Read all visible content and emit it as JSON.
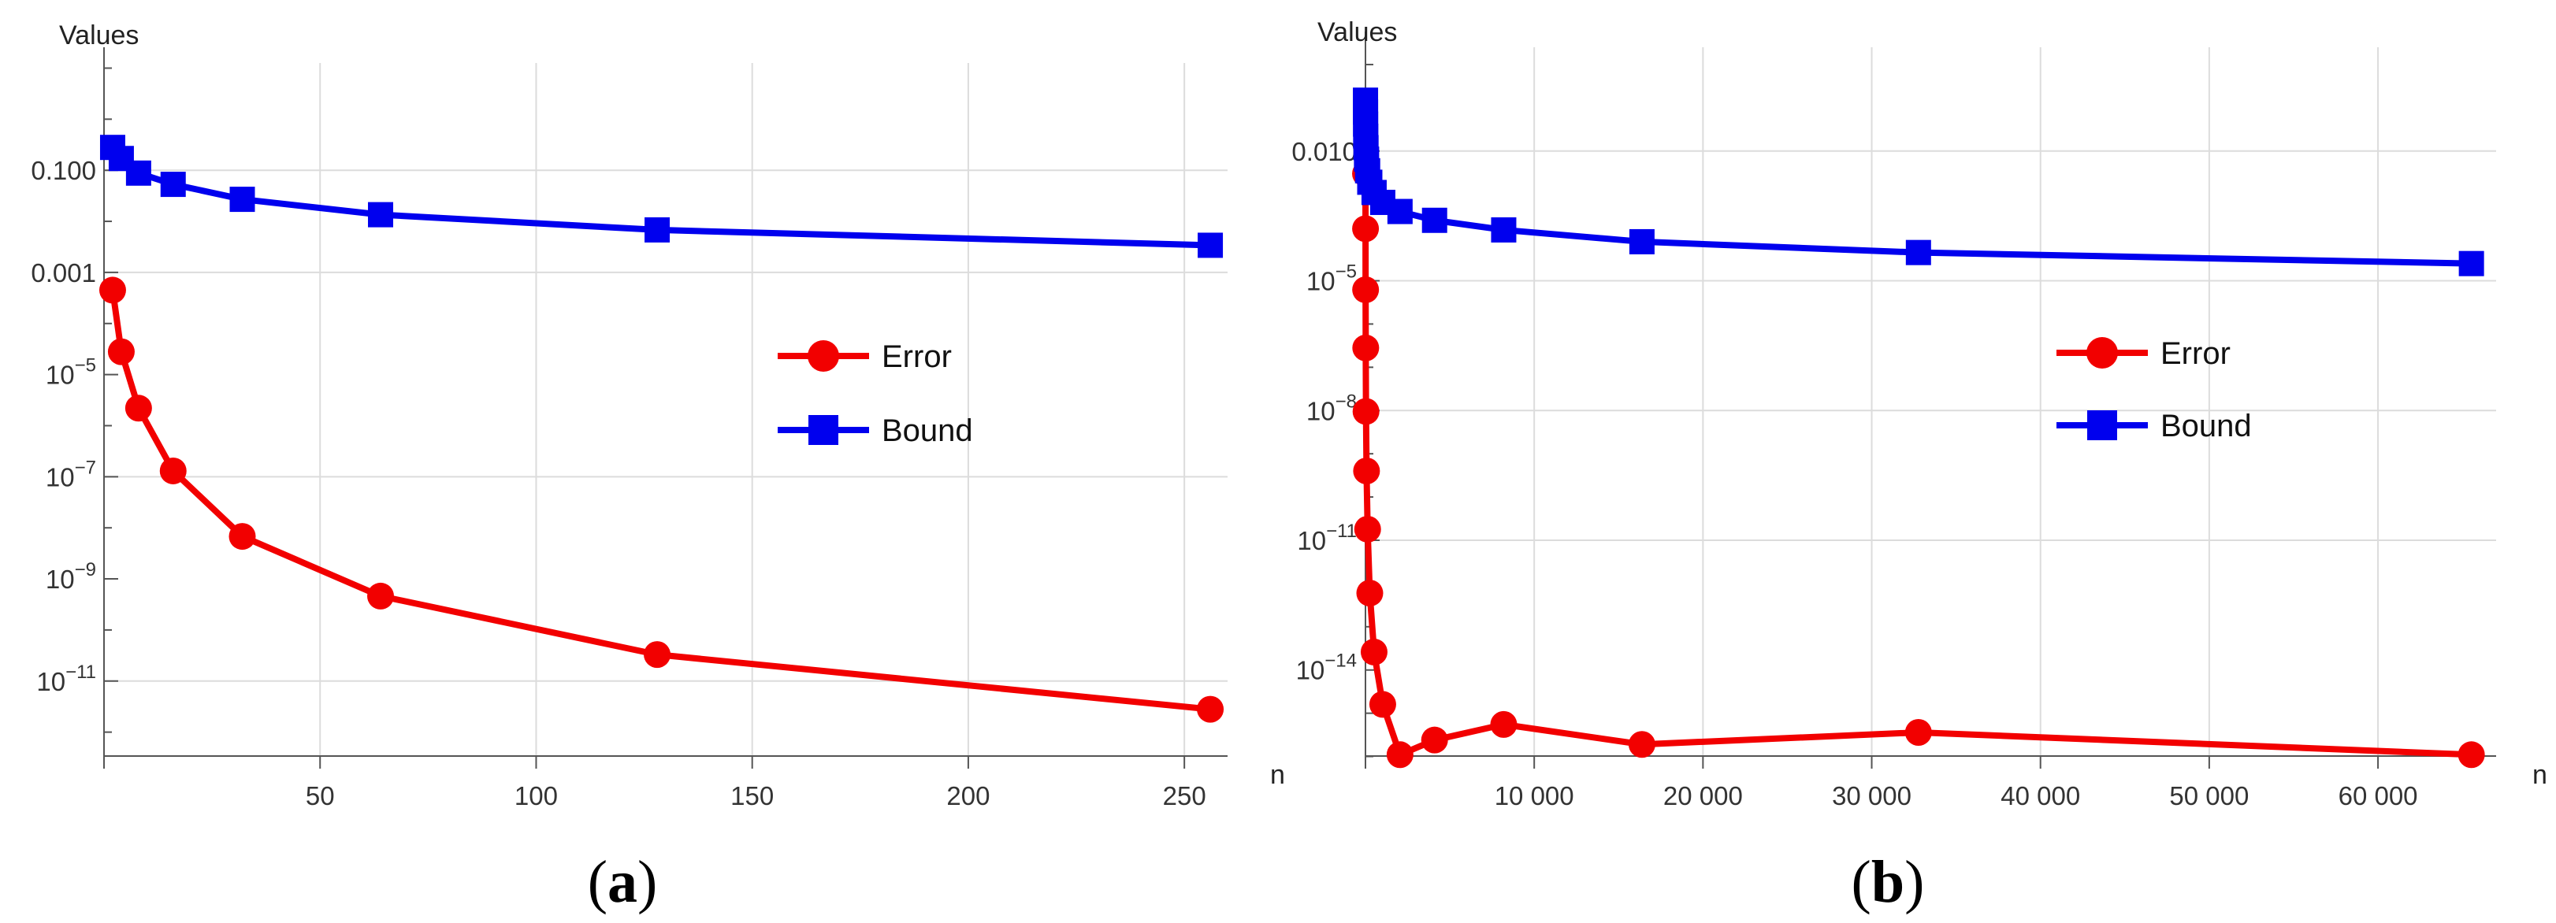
{
  "colors": {
    "error": "#f20000",
    "bound": "#0000ee",
    "grid": "#dcdcdc",
    "axis": "#555555"
  },
  "charts": [
    {
      "caption_open": "(",
      "caption_letter": "a",
      "caption_close": ")",
      "legend": {
        "error": "Error",
        "bound": "Bound",
        "placement": "middle-right"
      },
      "chart_data": {
        "type": "line",
        "scale_y": "log",
        "grid": true,
        "xlabel": "n",
        "ylabel": "Values",
        "xlim": [
          0,
          260
        ],
        "ylog10_range": [
          -12.9,
          1.1
        ],
        "x_ticks": [
          {
            "v": 50,
            "label": "50"
          },
          {
            "v": 100,
            "label": "100"
          },
          {
            "v": 150,
            "label": "150"
          },
          {
            "v": 200,
            "label": "200"
          },
          {
            "v": 250,
            "label": "250"
          }
        ],
        "y_ticks": [
          {
            "e": -1,
            "label": "0.100",
            "sup": ""
          },
          {
            "e": -3,
            "label": "0.001",
            "sup": ""
          },
          {
            "e": -5,
            "label": "10",
            "sup": "−5"
          },
          {
            "e": -7,
            "label": "10",
            "sup": "−7"
          },
          {
            "e": -9,
            "label": "10",
            "sup": "−9"
          },
          {
            "e": -11,
            "label": "10",
            "sup": "−11"
          }
        ],
        "x_grid": [
          50,
          100,
          150,
          200,
          250
        ],
        "y_grid": [
          -1,
          -3,
          -7,
          -11
        ],
        "series": [
          {
            "name": "Error",
            "marker": "circle",
            "x": [
              2,
              4,
              8,
              16,
              32,
              64,
              128,
              256
            ],
            "y": [
              0.00045,
              2.8e-05,
              2.2e-06,
              1.3e-07,
              6.8e-09,
              4.6e-10,
              3.3e-11,
              2.8e-12
            ]
          },
          {
            "name": "Bound",
            "marker": "square",
            "x": [
              2,
              4,
              8,
              16,
              32,
              64,
              128,
              256
            ],
            "y": [
              0.28,
              0.17,
              0.088,
              0.053,
              0.027,
              0.0135,
              0.0068,
              0.0034
            ]
          }
        ]
      }
    },
    {
      "caption_open": "(",
      "caption_letter": "b",
      "caption_close": ")",
      "legend": {
        "error": "Error",
        "bound": "Bound",
        "placement": "middle-right"
      },
      "chart_data": {
        "type": "line",
        "scale_y": "log",
        "grid": true,
        "xlabel": "n",
        "ylabel": "Values",
        "xlim": [
          0,
          67000
        ],
        "ylog10_range": [
          -16.5,
          0.4
        ],
        "x_ticks": [
          {
            "v": 10000,
            "label": "10 000"
          },
          {
            "v": 20000,
            "label": "20 000"
          },
          {
            "v": 30000,
            "label": "30 000"
          },
          {
            "v": 40000,
            "label": "40 000"
          },
          {
            "v": 50000,
            "label": "50 000"
          },
          {
            "v": 60000,
            "label": "60 000"
          }
        ],
        "y_ticks": [
          {
            "e": -2,
            "label": "0.010",
            "sup": ""
          },
          {
            "e": -5,
            "label": "10",
            "sup": "−5"
          },
          {
            "e": -8,
            "label": "10",
            "sup": "−8"
          },
          {
            "e": -11,
            "label": "10",
            "sup": "−11"
          },
          {
            "e": -14,
            "label": "10",
            "sup": "−14"
          }
        ],
        "x_grid": [
          10000,
          20000,
          30000,
          40000,
          50000,
          60000
        ],
        "y_grid": [
          -2,
          -5,
          -8,
          -11
        ],
        "series": [
          {
            "name": "Error",
            "marker": "circle",
            "x": [
              2,
              4,
              8,
              16,
              32,
              64,
              128,
              256,
              512,
              1024,
              2048,
              4096,
              8192,
              16384,
              32768,
              65536
            ],
            "y": [
              0.003,
              0.00016,
              6.2e-06,
              2.8e-07,
              9.5e-09,
              4e-10,
              1.8e-11,
              6e-13,
              2.6e-14,
              1.6e-15,
              1.1e-16,
              2.4e-16,
              5.5e-16,
              1.9e-16,
              3.6e-16,
              1.1e-16
            ]
          },
          {
            "name": "Bound",
            "marker": "square",
            "x": [
              2,
              4,
              8,
              16,
              32,
              64,
              128,
              256,
              512,
              1024,
              2048,
              4096,
              8192,
              16384,
              32768,
              65536
            ],
            "y": [
              0.15,
              0.08,
              0.042,
              0.022,
              0.012,
              0.0065,
              0.0035,
              0.0019,
              0.0011,
              0.00065,
              0.0004,
              0.00025,
              0.00015,
              8e-05,
              4.5e-05,
              2.5e-05
            ]
          }
        ]
      }
    }
  ]
}
